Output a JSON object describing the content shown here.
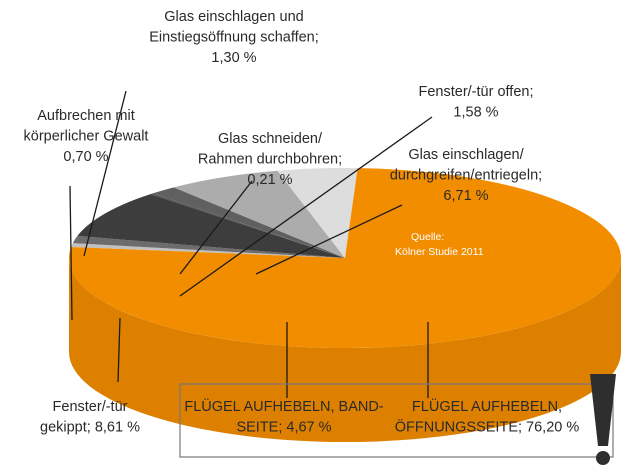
{
  "chart_data": {
    "type": "pie",
    "title": "",
    "source": [
      "Quelle:",
      "Kölner Studie 2011"
    ],
    "slices": [
      {
        "label": [
          "Aufbrechen mit",
          "körperlicher Gewalt",
          "0,70 %"
        ],
        "value": 0.7,
        "color": "#bdbdbd"
      },
      {
        "label": [
          "Glas einschlagen und",
          "Einstiegsöffnung schaffen;",
          "1,30 %"
        ],
        "value": 1.3,
        "color": "#6a6a6a"
      },
      {
        "label": [
          "Fenster/-tür",
          "gekippt; 8,61 %"
        ],
        "value": 8.61,
        "color": "#3c3c3c"
      },
      {
        "label": [
          "Glas schneiden/",
          "Rahmen durchbohren;",
          "0,21 %"
        ],
        "value": 0.21,
        "color": "#555555"
      },
      {
        "label": [
          "Fenster/-tür offen;",
          "1,58 %"
        ],
        "value": 1.58,
        "color": "#5e5e5e"
      },
      {
        "label": [
          "Glas einschlagen/",
          "durchgreifen/entriegeln;",
          "6,71 %"
        ],
        "value": 6.71,
        "color": "#a9a9a9"
      },
      {
        "label": [
          "FLÜGEL AUFHEBELN, BAND-",
          "SEITE; 4,67 %"
        ],
        "value": 4.67,
        "color": "#d9d9d9"
      },
      {
        "label": [
          "FLÜGEL AUFHEBELN,",
          "ÖFFNUNGSSEITE; 76,20 %"
        ],
        "value": 76.2,
        "color": "#ee8a00"
      }
    ],
    "colors": {
      "accent": "#ee8a00",
      "frame": "#777777"
    }
  }
}
